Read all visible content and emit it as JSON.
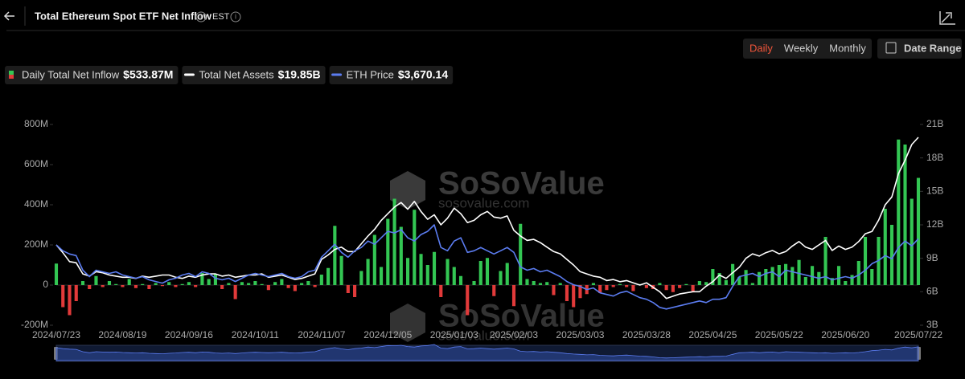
{
  "header": {
    "title": "Total Ethereum Spot ETF Net Inflow",
    "timezone": "EST"
  },
  "controls": {
    "intervals": [
      "Daily",
      "Weekly",
      "Monthly"
    ],
    "active_interval": "Daily",
    "date_range": "Date Range"
  },
  "watermark": {
    "brand": "SoSoValue",
    "url": "sosovalue.com"
  },
  "chart_data": {
    "type": "combo",
    "categories": [
      "2024/07/23",
      null,
      null,
      null,
      null,
      null,
      null,
      null,
      null,
      null,
      "2024/08/19",
      null,
      null,
      null,
      null,
      null,
      null,
      null,
      null,
      null,
      "2024/09/16",
      null,
      null,
      null,
      null,
      null,
      null,
      null,
      null,
      null,
      "2024/10/11",
      null,
      null,
      null,
      null,
      null,
      null,
      null,
      null,
      null,
      "2024/11/07",
      null,
      null,
      null,
      null,
      null,
      null,
      null,
      null,
      null,
      "2024/12/05",
      null,
      null,
      null,
      null,
      null,
      null,
      null,
      null,
      null,
      "2025/01/03",
      null,
      null,
      null,
      null,
      null,
      null,
      null,
      null,
      "2025/02/03",
      null,
      null,
      null,
      null,
      null,
      null,
      null,
      null,
      null,
      "2025/03/03",
      null,
      null,
      null,
      null,
      null,
      null,
      null,
      null,
      null,
      "2025/03/28",
      null,
      null,
      null,
      null,
      null,
      null,
      null,
      null,
      null,
      "2025/04/25",
      null,
      null,
      null,
      null,
      null,
      null,
      null,
      null,
      null,
      "2025/05/22",
      null,
      null,
      null,
      null,
      null,
      null,
      null,
      null,
      null,
      "2025/06/20",
      null,
      null,
      null,
      null,
      null,
      null,
      null,
      null,
      null,
      null,
      "2025/07/22"
    ],
    "ylim": [
      -200,
      800
    ],
    "yticks": [
      {
        "value": -200,
        "label": "-200M"
      },
      {
        "value": 0,
        "label": "0"
      },
      {
        "value": 200,
        "label": "200M"
      },
      {
        "value": 400,
        "label": "400M"
      },
      {
        "value": 600,
        "label": "600M"
      },
      {
        "value": 800,
        "label": "800M"
      }
    ],
    "y2lim": [
      3,
      21
    ],
    "y2ticks": [
      {
        "value": 3,
        "label": "3B"
      },
      {
        "value": 6,
        "label": "6B"
      },
      {
        "value": 9,
        "label": "9B"
      },
      {
        "value": 12,
        "label": "12B"
      },
      {
        "value": 15,
        "label": "15B"
      },
      {
        "value": 18,
        "label": "18B"
      },
      {
        "value": 21,
        "label": "21B"
      }
    ],
    "y3lim": [
      1000,
      7200
    ],
    "series": [
      {
        "name": "Daily Total Net Inflow",
        "type": "bar",
        "color": "#33c653",
        "negative_color": "#e23a3a",
        "latest_label": "$533.87M",
        "values": [
          107,
          -110,
          -150,
          -80,
          20,
          -20,
          45,
          -10,
          20,
          5,
          -10,
          30,
          -15,
          5,
          -20,
          10,
          -5,
          15,
          -10,
          5,
          15,
          -10,
          60,
          30,
          55,
          -20,
          10,
          -70,
          15,
          10,
          20,
          5,
          -25,
          15,
          30,
          -15,
          -30,
          10,
          20,
          -10,
          52,
          85,
          295,
          145,
          -40,
          -60,
          70,
          130,
          250,
          90,
          330,
          430,
          290,
          135,
          375,
          155,
          100,
          165,
          -60,
          130,
          90,
          45,
          -150,
          20,
          120,
          135,
          -55,
          70,
          110,
          -105,
          305,
          30,
          20,
          10,
          15,
          -50,
          10,
          -80,
          -110,
          -65,
          -45,
          10,
          -40,
          -25,
          -10,
          5,
          -10,
          -30,
          5,
          -15,
          -20,
          10,
          -25,
          -35,
          -15,
          5,
          -30,
          20,
          15,
          80,
          60,
          25,
          105,
          40,
          75,
          10,
          65,
          80,
          90,
          100,
          105,
          90,
          125,
          40,
          95,
          65,
          240,
          35,
          95,
          20,
          50,
          120,
          240,
          80,
          240,
          380,
          300,
          725,
          700,
          430,
          533.87
        ]
      },
      {
        "name": "Total Net Assets",
        "type": "line",
        "axis": "y2",
        "color": "#ffffff",
        "latest_label": "$19.85B",
        "values": [
          10.2,
          9.5,
          8.7,
          8.6,
          7.6,
          7.4,
          7.8,
          7.7,
          7.5,
          7.4,
          7.3,
          7.3,
          7.2,
          7.4,
          7.3,
          7.4,
          7.5,
          7.5,
          7.3,
          7.2,
          7.4,
          7.3,
          7.5,
          7.6,
          7.6,
          7.4,
          7.5,
          7.3,
          7.4,
          7.5,
          7.5,
          7.6,
          7.3,
          7.4,
          7.5,
          7.3,
          7.1,
          7.2,
          7.4,
          7.6,
          8.9,
          9.3,
          9.8,
          10.0,
          9.6,
          9.6,
          10.3,
          11.0,
          11.6,
          12.4,
          13.0,
          13.6,
          14.0,
          13.4,
          14.1,
          13.2,
          12.5,
          12.9,
          12.0,
          12.6,
          13.5,
          13.0,
          12.2,
          12.4,
          12.9,
          13.2,
          12.7,
          12.6,
          12.8,
          11.5,
          11.0,
          10.6,
          10.7,
          10.4,
          10.0,
          9.6,
          9.4,
          8.9,
          8.4,
          7.8,
          7.6,
          7.4,
          7.3,
          7.0,
          7.1,
          6.9,
          7.0,
          6.8,
          6.6,
          6.8,
          6.4,
          6.0,
          5.4,
          5.6,
          5.8,
          5.9,
          6.0,
          6.0,
          6.5,
          6.9,
          7.5,
          7.2,
          7.7,
          8.2,
          9.0,
          9.4,
          9.2,
          9.5,
          9.7,
          9.4,
          9.6,
          10.1,
          10.5,
          10.0,
          9.8,
          10.2,
          10.6,
          9.7,
          10.1,
          9.8,
          10.0,
          10.5,
          11.2,
          11.4,
          12.4,
          13.8,
          14.5,
          16.6,
          17.8,
          19.2,
          19.85
        ]
      },
      {
        "name": "ETH Price",
        "type": "line",
        "axis": "y3",
        "color": "#5b7cf0",
        "latest_label": "$3,670.14",
        "values": [
          3480,
          3300,
          3200,
          3150,
          2700,
          2500,
          2700,
          2650,
          2600,
          2650,
          2550,
          2500,
          2450,
          2500,
          2400,
          2350,
          2300,
          2400,
          2450,
          2550,
          2600,
          2500,
          2650,
          2600,
          2450,
          2400,
          2450,
          2350,
          2450,
          2550,
          2600,
          2550,
          2500,
          2550,
          2600,
          2500,
          2450,
          2500,
          2650,
          2700,
          3100,
          3300,
          3500,
          3250,
          3100,
          3300,
          3400,
          3600,
          3500,
          3700,
          3900,
          3850,
          3950,
          3700,
          3600,
          3800,
          3900,
          4100,
          3400,
          3300,
          3600,
          3700,
          3250,
          3300,
          3400,
          3300,
          3200,
          3300,
          3400,
          3250,
          2800,
          2700,
          2750,
          2650,
          2700,
          2600,
          2500,
          2350,
          2250,
          2200,
          2100,
          2150,
          2000,
          1950,
          1900,
          2000,
          2050,
          1950,
          1850,
          1800,
          1700,
          1550,
          1500,
          1550,
          1600,
          1650,
          1700,
          1750,
          1700,
          1800,
          1800,
          1850,
          2200,
          2500,
          2550,
          2600,
          2500,
          2600,
          2650,
          2500,
          2700,
          2650,
          2600,
          2550,
          2500,
          2450,
          2500,
          2400,
          2450,
          2500,
          2450,
          2550,
          2700,
          2900,
          3000,
          3150,
          3050,
          3400,
          3600,
          3450,
          3670.14
        ]
      }
    ]
  }
}
